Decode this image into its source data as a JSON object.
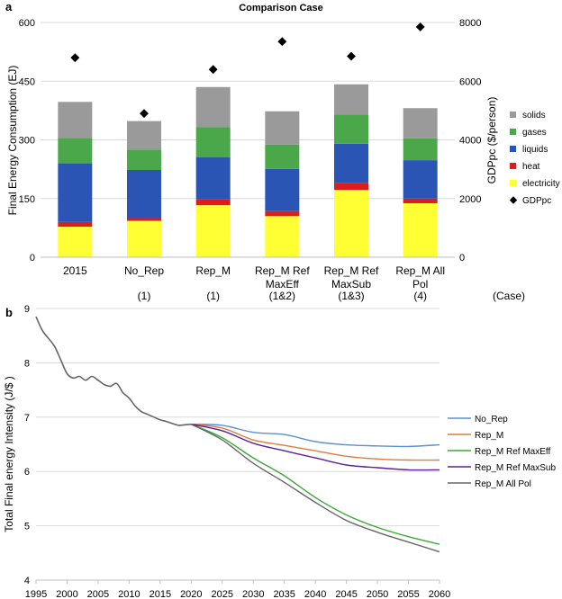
{
  "chart_data": [
    {
      "type": "bar",
      "stacked": true,
      "panel_label": "a",
      "title": "Comparison Case",
      "ylabel": "Final Energy Consumption (EJ)",
      "y2label": "GDPpc ($/person)",
      "ylim": [
        0,
        600
      ],
      "yticks": [
        0,
        150,
        300,
        450,
        600
      ],
      "y2lim": [
        0,
        8000
      ],
      "y2ticks": [
        0,
        2000,
        4000,
        6000,
        8000
      ],
      "categories": [
        "2015",
        "No_Rep",
        "Rep_M",
        "Rep_M Ref MaxEff",
        "Rep_M Ref MaxSub",
        "Rep_M All Pol"
      ],
      "category_lines": [
        [
          "2015"
        ],
        [
          "No_Rep"
        ],
        [
          "Rep_M"
        ],
        [
          "Rep_M Ref",
          "MaxEff"
        ],
        [
          "Rep_M Ref",
          "MaxSub"
        ],
        [
          "Rep_M All",
          "Pol"
        ]
      ],
      "case_labels": [
        "",
        "(1)",
        "(1)",
        "(1&2)",
        "(1&3)",
        "(4)"
      ],
      "case_axis_label": "(Case)",
      "series": [
        {
          "name": "electricity",
          "color": "#ffff33",
          "values": [
            78,
            93,
            133,
            105,
            172,
            138
          ]
        },
        {
          "name": "heat",
          "color": "#dd1c1c",
          "values": [
            12,
            7,
            15,
            13,
            18,
            12
          ]
        },
        {
          "name": "liquids",
          "color": "#2b55b5",
          "values": [
            150,
            123,
            108,
            108,
            100,
            98
          ]
        },
        {
          "name": "gases",
          "color": "#4aa84a",
          "values": [
            65,
            52,
            77,
            62,
            75,
            56
          ]
        },
        {
          "name": "solids",
          "color": "#9a9a9a",
          "values": [
            92,
            73,
            102,
            85,
            77,
            77
          ]
        }
      ],
      "gdp_series": {
        "name": "GDPpc",
        "values": [
          6800,
          4900,
          6400,
          7350,
          6850,
          7850
        ]
      },
      "legend": [
        "solids",
        "gases",
        "liquids",
        "heat",
        "electricity",
        "GDPpc"
      ]
    },
    {
      "type": "line",
      "panel_label": "b",
      "ylabel": "Total Final energy Intensity (J/$ )",
      "xlim": [
        1995,
        2060
      ],
      "ylim": [
        4,
        9
      ],
      "xticks": [
        1995,
        2000,
        2005,
        2010,
        2015,
        2020,
        2025,
        2030,
        2035,
        2040,
        2045,
        2050,
        2055,
        2060
      ],
      "yticks": [
        4,
        5,
        6,
        7,
        8,
        9
      ],
      "history": {
        "x": [
          1995,
          1996,
          1997,
          1998,
          1999,
          2000,
          2001,
          2002,
          2003,
          2004,
          2005,
          2006,
          2007,
          2008,
          2009,
          2010,
          2011,
          2012,
          2013,
          2014,
          2015,
          2016,
          2017,
          2018,
          2019,
          2020
        ],
        "y": [
          8.85,
          8.6,
          8.45,
          8.3,
          8.05,
          7.8,
          7.72,
          7.75,
          7.68,
          7.75,
          7.68,
          7.6,
          7.57,
          7.62,
          7.45,
          7.35,
          7.2,
          7.1,
          7.05,
          7.0,
          6.95,
          6.92,
          6.88,
          6.85,
          6.86,
          6.87
        ]
      },
      "projection_x": [
        2020,
        2025,
        2030,
        2035,
        2040,
        2045,
        2050,
        2055,
        2060
      ],
      "series": [
        {
          "name": "No_Rep",
          "color": "#5b8fd6",
          "values": [
            6.87,
            6.85,
            6.72,
            6.68,
            6.55,
            6.49,
            6.47,
            6.46,
            6.49
          ]
        },
        {
          "name": "Rep_M",
          "color": "#e07b39",
          "values": [
            6.87,
            6.8,
            6.58,
            6.48,
            6.38,
            6.28,
            6.23,
            6.21,
            6.21
          ]
        },
        {
          "name": "Rep_M Ref MaxEff",
          "color": "#3aaa35",
          "values": [
            6.87,
            6.62,
            6.25,
            5.92,
            5.52,
            5.2,
            4.97,
            4.8,
            4.66
          ]
        },
        {
          "name": "Rep_M Ref MaxSub",
          "color": "#5b1fa0",
          "values": [
            6.87,
            6.75,
            6.52,
            6.38,
            6.25,
            6.12,
            6.07,
            6.03,
            6.03
          ]
        },
        {
          "name": "Rep_M All Pol",
          "color": "#666666",
          "values": [
            6.87,
            6.58,
            6.15,
            5.8,
            5.43,
            5.1,
            4.88,
            4.7,
            4.52
          ]
        }
      ],
      "legend": [
        "No_Rep",
        "Rep_M",
        "Rep_M Ref MaxEff",
        "Rep_M Ref MaxSub",
        "Rep_M All Pol"
      ]
    }
  ]
}
